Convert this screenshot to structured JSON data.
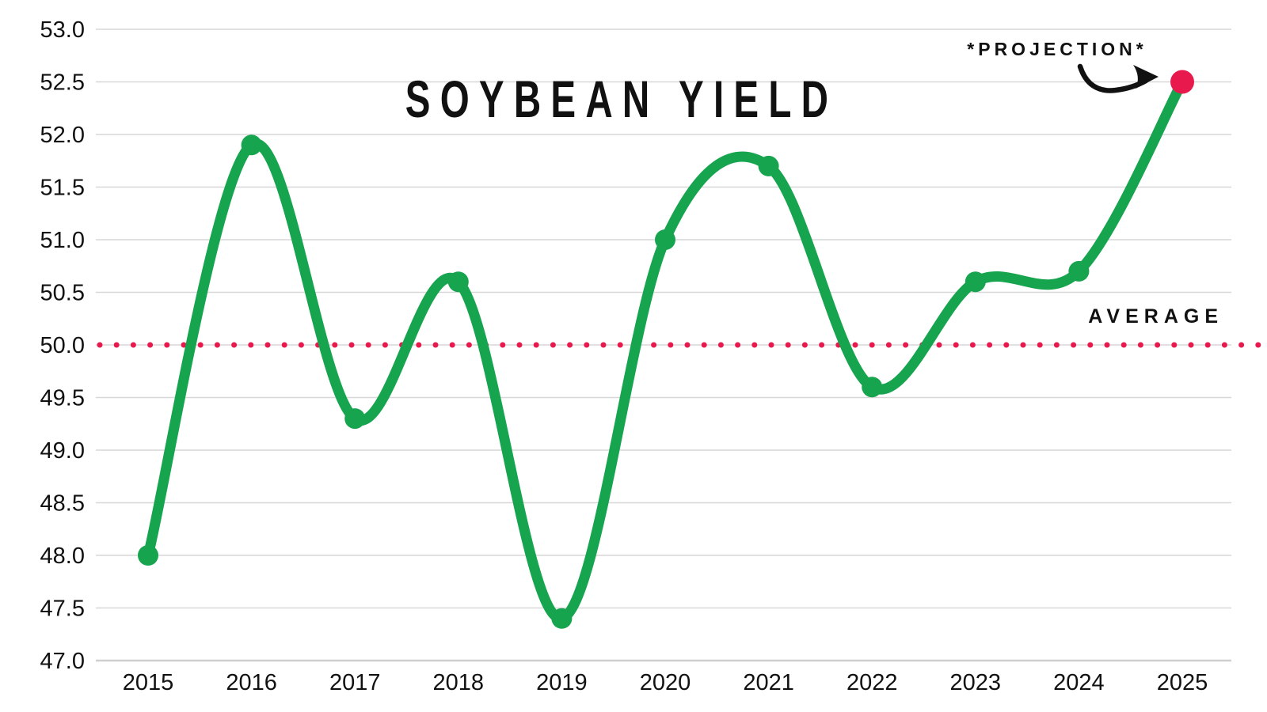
{
  "title": "SOYBEAN YIELD",
  "annotations": {
    "projection_label": "*PROJECTION*",
    "average_label": "AVERAGE"
  },
  "colors": {
    "line": "#17a44e",
    "point": "#17a44e",
    "projection_point": "#e8194c",
    "average_line": "#e8194c",
    "grid": "#d7d7d7",
    "axis_line": "#cfcfcf",
    "text": "#111111",
    "arrow": "#111111",
    "background": "#ffffff"
  },
  "chart_data": {
    "type": "line",
    "title": "SOYBEAN YIELD",
    "x": [
      2015,
      2016,
      2017,
      2018,
      2019,
      2020,
      2021,
      2022,
      2023,
      2024,
      2025
    ],
    "series": [
      {
        "name": "Soybean Yield",
        "values": [
          48.0,
          51.9,
          49.3,
          50.6,
          47.4,
          51.0,
          51.7,
          49.6,
          50.6,
          50.7,
          52.5
        ]
      }
    ],
    "projection": {
      "x": 2025,
      "value": 52.5,
      "label": "*PROJECTION*"
    },
    "average": {
      "value": 50.0,
      "label": "AVERAGE",
      "style": "dotted"
    },
    "xlabel": "",
    "ylabel": "",
    "ylim": [
      47.0,
      53.0
    ],
    "yticks": [
      47.0,
      47.5,
      48.0,
      48.5,
      49.0,
      49.5,
      50.0,
      50.5,
      51.0,
      51.5,
      52.0,
      52.5,
      53.0
    ],
    "ytick_format": "one_decimal",
    "grid": "horizontal",
    "legend": "none",
    "curve": "smooth"
  }
}
